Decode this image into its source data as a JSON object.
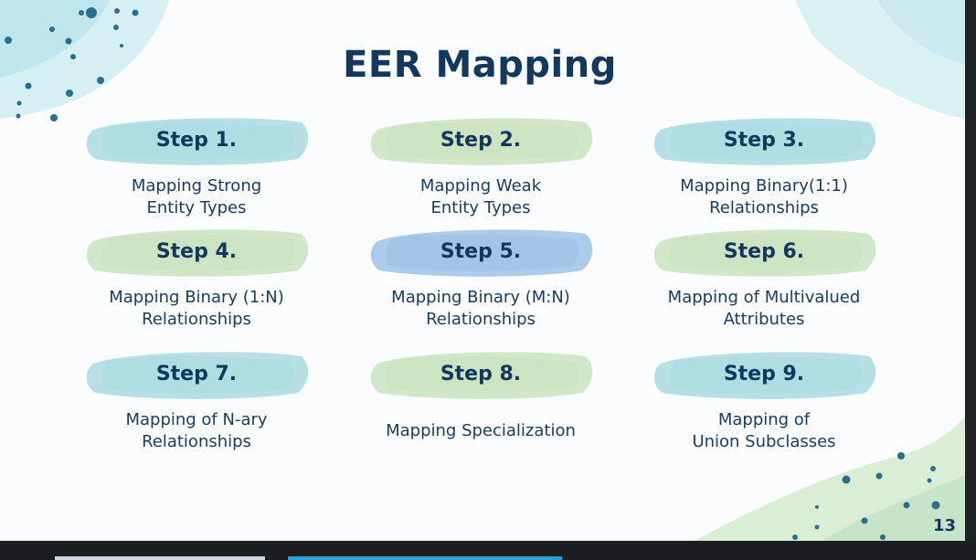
{
  "title": "EER Mapping",
  "page_number": "13",
  "colors": {
    "text": "#12385e",
    "brush_teal": "#a9dbe0",
    "brush_green": "#c9e3c0",
    "brush_blue": "#9fc2e6",
    "dot": "#2a6f8e"
  },
  "steps": [
    {
      "label": "Step 1.",
      "desc": "Mapping Strong\nEntity Types",
      "brush": "brush_teal"
    },
    {
      "label": "Step 2.",
      "desc": "Mapping Weak\nEntity Types",
      "brush": "brush_green"
    },
    {
      "label": "Step 3.",
      "desc": "Mapping Binary(1:1)\nRelationships",
      "brush": "brush_teal"
    },
    {
      "label": "Step 4.",
      "desc": "Mapping Binary (1:N)\nRelationships",
      "brush": "brush_green"
    },
    {
      "label": "Step 5.",
      "desc": "Mapping Binary (M:N)\nRelationships",
      "brush": "brush_blue"
    },
    {
      "label": "Step 6.",
      "desc": "Mapping of Multivalued\nAttributes",
      "brush": "brush_green"
    },
    {
      "label": "Step 7.",
      "desc": "Mapping of N-ary\nRelationships",
      "brush": "brush_teal"
    },
    {
      "label": "Step 8.",
      "desc": "Mapping Specialization",
      "brush": "brush_green"
    },
    {
      "label": "Step 9.",
      "desc": "Mapping of\nUnion Subclasses",
      "brush": "brush_teal"
    }
  ]
}
